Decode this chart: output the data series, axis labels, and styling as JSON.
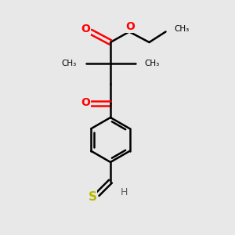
{
  "bg_color": "#e8e8e8",
  "atom_colors": {
    "C": "#000000",
    "O": "#ff0000",
    "S": "#b8b800",
    "H": "#606060"
  },
  "bond_lw": 1.8,
  "figsize": [
    3.0,
    3.0
  ],
  "dpi": 100,
  "xlim": [
    0,
    10
  ],
  "ylim": [
    0,
    10
  ]
}
